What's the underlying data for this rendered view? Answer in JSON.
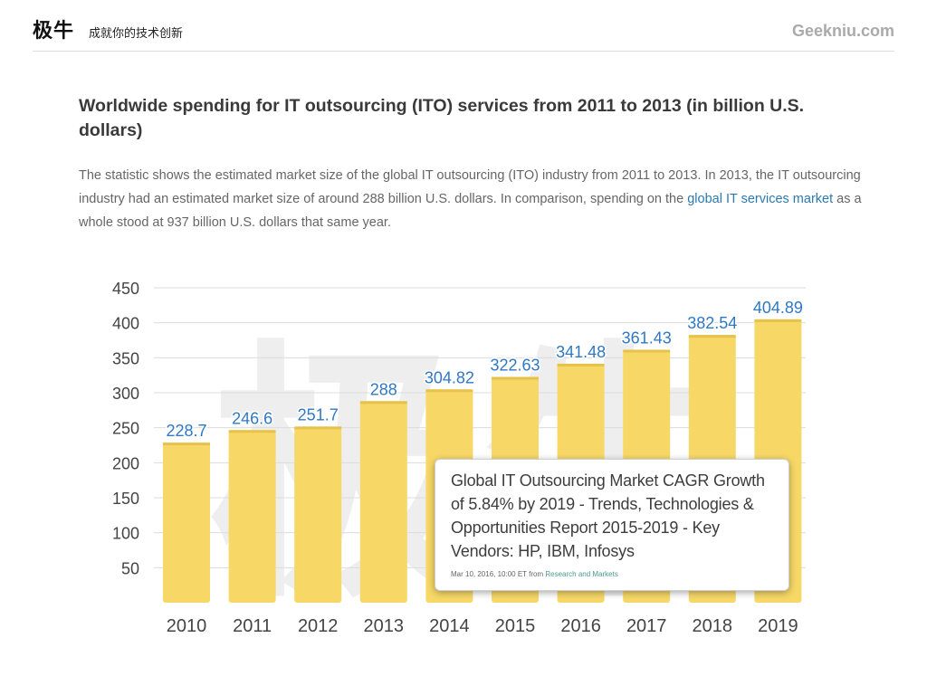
{
  "header": {
    "brand": "极牛",
    "slogan": "成就你的技术创新",
    "site": "Geekniu.com"
  },
  "article": {
    "title": "Worldwide spending for IT outsourcing (ITO) services from 2011 to 2013 (in billion U.S. dollars)",
    "description_part1": "The statistic shows the estimated market size of the global IT outsourcing (ITO) industry from 2011 to 2013. In 2013, the IT outsourcing industry had an estimated market size of around 288 billion U.S. dollars. In comparison, spending on the ",
    "description_link": "global IT services market",
    "description_part2": " as a whole stood at 937 billion U.S. dollars that same year."
  },
  "news_card": {
    "headline": "Global IT Outsourcing Market CAGR Growth of 5.84% by 2019 - Trends, Technologies & Opportunities Report 2015-2019 - Key Vendors: HP, IBM, Infosys",
    "date": "Mar 10, 2016, 10:00 ET from ",
    "source": "Research and Markets"
  },
  "chart_data": {
    "type": "bar",
    "title": "",
    "xlabel": "",
    "ylabel": "",
    "categories": [
      "2010",
      "2011",
      "2012",
      "2013",
      "2014",
      "2015",
      "2016",
      "2017",
      "2018",
      "2019"
    ],
    "values": [
      228.7,
      246.6,
      251.7,
      288,
      304.82,
      322.63,
      341.48,
      361.43,
      382.54,
      404.89
    ],
    "labels": [
      "228.7",
      "246.6",
      "251.7",
      "288",
      "304.82",
      "322.63",
      "341.48",
      "361.43",
      "382.54",
      "404.89"
    ],
    "yticks": [
      50,
      100,
      150,
      200,
      250,
      300,
      350,
      400,
      450
    ],
    "ylim": [
      0,
      450
    ],
    "grid": true,
    "bar_color": "#f7d867",
    "label_color": "#2f78c4",
    "watermark": "极牛"
  }
}
